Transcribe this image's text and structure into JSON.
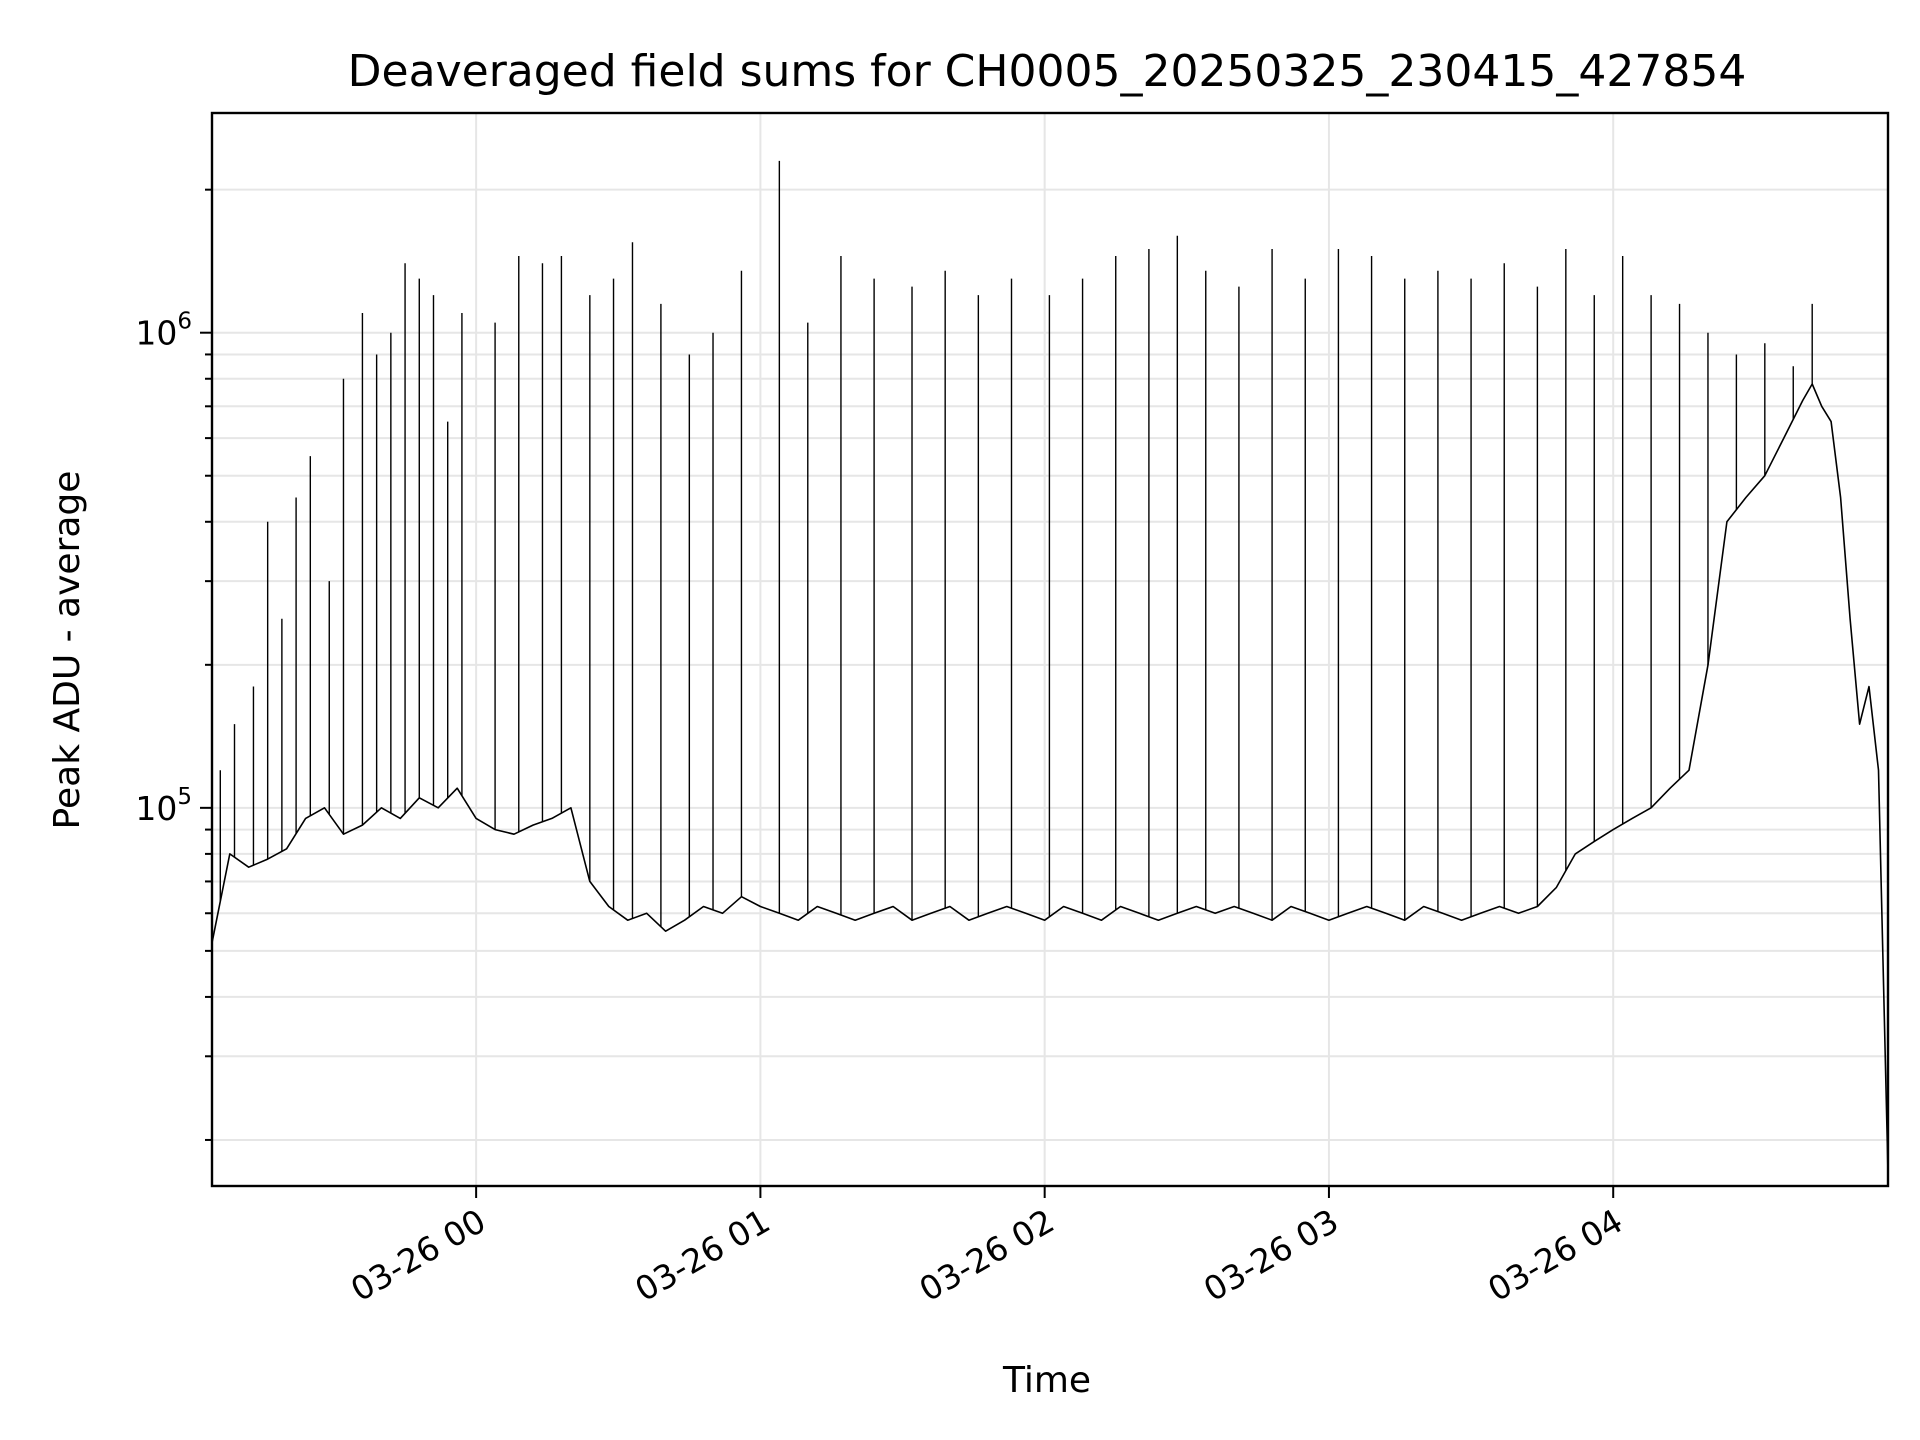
{
  "chart_data": {
    "type": "line",
    "title": "Deaveraged field sums for CH0005_20250325_230415_427854",
    "xlabel": "Time",
    "ylabel": "Peak ADU - average",
    "yscale": "log",
    "grid": true,
    "line_color": "#000000",
    "grid_color": "#e6e6e6",
    "xlim": [
      "2025-03-25 23:04:15",
      "2025-03-26 04:58:00"
    ],
    "ylim": [
      16000,
      2900000
    ],
    "x_ticks": [
      {
        "label": "03-26 00",
        "value": "2025-03-26 00:00:00"
      },
      {
        "label": "03-26 01",
        "value": "2025-03-26 01:00:00"
      },
      {
        "label": "03-26 02",
        "value": "2025-03-26 02:00:00"
      },
      {
        "label": "03-26 03",
        "value": "2025-03-26 03:00:00"
      },
      {
        "label": "03-26 04",
        "value": "2025-03-26 04:00:00"
      }
    ],
    "y_ticks": [
      {
        "base": "10",
        "exp": "5",
        "value": 100000
      },
      {
        "base": "10",
        "exp": "6",
        "value": 1000000
      }
    ],
    "series": [
      {
        "x": [
          "2025-03-25 23:04:15",
          "2025-03-25 23:08:00",
          "2025-03-25 23:12:00",
          "2025-03-25 23:16:00",
          "2025-03-25 23:20:00",
          "2025-03-25 23:24:00",
          "2025-03-25 23:28:00",
          "2025-03-25 23:32:00",
          "2025-03-25 23:36:00",
          "2025-03-25 23:40:00",
          "2025-03-25 23:44:00",
          "2025-03-25 23:48:00",
          "2025-03-25 23:52:00",
          "2025-03-25 23:56:00",
          "2025-03-26 00:00:00",
          "2025-03-26 00:04:00",
          "2025-03-26 00:08:00",
          "2025-03-26 00:12:00",
          "2025-03-26 00:16:00",
          "2025-03-26 00:20:00",
          "2025-03-26 00:24:00",
          "2025-03-26 00:28:00",
          "2025-03-26 00:32:00",
          "2025-03-26 00:36:00",
          "2025-03-26 00:40:00",
          "2025-03-26 00:44:00",
          "2025-03-26 00:48:00",
          "2025-03-26 00:52:00",
          "2025-03-26 00:56:00",
          "2025-03-26 01:00:00",
          "2025-03-26 01:04:00",
          "2025-03-26 01:08:00",
          "2025-03-26 01:12:00",
          "2025-03-26 01:16:00",
          "2025-03-26 01:20:00",
          "2025-03-26 01:24:00",
          "2025-03-26 01:28:00",
          "2025-03-26 01:32:00",
          "2025-03-26 01:36:00",
          "2025-03-26 01:40:00",
          "2025-03-26 01:44:00",
          "2025-03-26 01:48:00",
          "2025-03-26 01:52:00",
          "2025-03-26 01:56:00",
          "2025-03-26 02:00:00",
          "2025-03-26 02:04:00",
          "2025-03-26 02:08:00",
          "2025-03-26 02:12:00",
          "2025-03-26 02:16:00",
          "2025-03-26 02:20:00",
          "2025-03-26 02:24:00",
          "2025-03-26 02:28:00",
          "2025-03-26 02:32:00",
          "2025-03-26 02:36:00",
          "2025-03-26 02:40:00",
          "2025-03-26 02:44:00",
          "2025-03-26 02:48:00",
          "2025-03-26 02:52:00",
          "2025-03-26 02:56:00",
          "2025-03-26 03:00:00",
          "2025-03-26 03:04:00",
          "2025-03-26 03:08:00",
          "2025-03-26 03:12:00",
          "2025-03-26 03:16:00",
          "2025-03-26 03:20:00",
          "2025-03-26 03:24:00",
          "2025-03-26 03:28:00",
          "2025-03-26 03:32:00",
          "2025-03-26 03:36:00",
          "2025-03-26 03:40:00",
          "2025-03-26 03:44:00",
          "2025-03-26 03:48:00",
          "2025-03-26 03:52:00",
          "2025-03-26 03:56:00",
          "2025-03-26 04:00:00",
          "2025-03-26 04:04:00",
          "2025-03-26 04:08:00",
          "2025-03-26 04:12:00",
          "2025-03-26 04:16:00",
          "2025-03-26 04:20:00",
          "2025-03-26 04:24:00",
          "2025-03-26 04:28:00",
          "2025-03-26 04:32:00",
          "2025-03-26 04:36:00",
          "2025-03-26 04:40:00",
          "2025-03-26 04:42:00",
          "2025-03-26 04:44:00",
          "2025-03-26 04:46:00",
          "2025-03-26 04:48:00",
          "2025-03-26 04:50:00",
          "2025-03-26 04:52:00",
          "2025-03-26 04:54:00",
          "2025-03-26 04:56:00",
          "2025-03-26 04:58:00"
        ],
        "y": [
          52000,
          80000,
          75000,
          78000,
          82000,
          95000,
          100000,
          88000,
          92000,
          100000,
          95000,
          105000,
          100000,
          110000,
          95000,
          90000,
          88000,
          92000,
          95000,
          100000,
          70000,
          62000,
          58000,
          60000,
          55000,
          58000,
          62000,
          60000,
          65000,
          62000,
          60000,
          58000,
          62000,
          60000,
          58000,
          60000,
          62000,
          58000,
          60000,
          62000,
          58000,
          60000,
          62000,
          60000,
          58000,
          62000,
          60000,
          58000,
          62000,
          60000,
          58000,
          60000,
          62000,
          60000,
          62000,
          60000,
          58000,
          62000,
          60000,
          58000,
          60000,
          62000,
          60000,
          58000,
          62000,
          60000,
          58000,
          60000,
          62000,
          60000,
          62000,
          68000,
          80000,
          85000,
          90000,
          95000,
          100000,
          110000,
          120000,
          200000,
          400000,
          450000,
          500000,
          600000,
          720000,
          780000,
          700000,
          650000,
          450000,
          250000,
          150000,
          180000,
          120000,
          17000
        ]
      }
    ],
    "spikes": {
      "x": [
        "2025-03-25 23:06:00",
        "2025-03-25 23:09:00",
        "2025-03-25 23:13:00",
        "2025-03-25 23:16:00",
        "2025-03-25 23:19:00",
        "2025-03-25 23:22:00",
        "2025-03-25 23:25:00",
        "2025-03-25 23:29:00",
        "2025-03-25 23:32:00",
        "2025-03-25 23:36:00",
        "2025-03-25 23:39:00",
        "2025-03-25 23:42:00",
        "2025-03-25 23:45:00",
        "2025-03-25 23:48:00",
        "2025-03-25 23:51:00",
        "2025-03-25 23:54:00",
        "2025-03-25 23:57:00",
        "2025-03-26 00:04:00",
        "2025-03-26 00:09:00",
        "2025-03-26 00:14:00",
        "2025-03-26 00:18:00",
        "2025-03-26 00:24:00",
        "2025-03-26 00:29:00",
        "2025-03-26 00:33:00",
        "2025-03-26 00:39:00",
        "2025-03-26 00:45:00",
        "2025-03-26 00:50:00",
        "2025-03-26 00:56:00",
        "2025-03-26 01:04:00",
        "2025-03-26 01:10:00",
        "2025-03-26 01:17:00",
        "2025-03-26 01:24:00",
        "2025-03-26 01:32:00",
        "2025-03-26 01:39:00",
        "2025-03-26 01:46:00",
        "2025-03-26 01:53:00",
        "2025-03-26 02:01:00",
        "2025-03-26 02:08:00",
        "2025-03-26 02:15:00",
        "2025-03-26 02:22:00",
        "2025-03-26 02:28:00",
        "2025-03-26 02:34:00",
        "2025-03-26 02:41:00",
        "2025-03-26 02:48:00",
        "2025-03-26 02:55:00",
        "2025-03-26 03:02:00",
        "2025-03-26 03:09:00",
        "2025-03-26 03:16:00",
        "2025-03-26 03:23:00",
        "2025-03-26 03:30:00",
        "2025-03-26 03:37:00",
        "2025-03-26 03:44:00",
        "2025-03-26 03:50:00",
        "2025-03-26 03:56:00",
        "2025-03-26 04:02:00",
        "2025-03-26 04:08:00",
        "2025-03-26 04:14:00",
        "2025-03-26 04:20:00",
        "2025-03-26 04:26:00",
        "2025-03-26 04:32:00",
        "2025-03-26 04:38:00",
        "2025-03-26 04:42:00"
      ],
      "y": [
        120000,
        150000,
        180000,
        400000,
        250000,
        450000,
        550000,
        300000,
        800000,
        1100000,
        900000,
        1000000,
        1400000,
        1300000,
        1200000,
        650000,
        1100000,
        1050000,
        1450000,
        1400000,
        1450000,
        1200000,
        1300000,
        1550000,
        1150000,
        900000,
        1000000,
        1350000,
        2300000,
        1050000,
        1450000,
        1300000,
        1250000,
        1350000,
        1200000,
        1300000,
        1200000,
        1300000,
        1450000,
        1500000,
        1600000,
        1350000,
        1250000,
        1500000,
        1300000,
        1500000,
        1450000,
        1300000,
        1350000,
        1300000,
        1400000,
        1250000,
        1500000,
        1200000,
        1450000,
        1200000,
        1150000,
        1000000,
        900000,
        950000,
        850000,
        1150000
      ]
    }
  }
}
